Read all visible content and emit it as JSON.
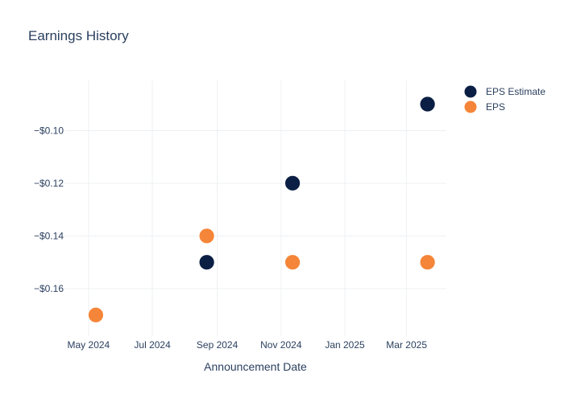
{
  "chart_data": {
    "type": "scatter",
    "title": "Earnings History",
    "xlabel": "Announcement Date",
    "ylabel": "",
    "x_ticks": [
      "May 2024",
      "Jul 2024",
      "Sep 2024",
      "Nov 2024",
      "Jan 2025",
      "Mar 2025"
    ],
    "y_ticks": [
      "−$0.10",
      "−$0.12",
      "−$0.14",
      "−$0.16"
    ],
    "y_tick_values": [
      -0.1,
      -0.12,
      -0.14,
      -0.16
    ],
    "xlim": [
      "2024-04-08",
      "2025-04-08"
    ],
    "ylim": [
      -0.178,
      -0.081
    ],
    "grid": true,
    "legend_position": "top-right",
    "series": [
      {
        "name": "EPS Estimate",
        "color": "#0b1f44",
        "points": [
          {
            "x": "2024-05-08",
            "y": -0.17
          },
          {
            "x": "2024-08-22",
            "y": -0.15
          },
          {
            "x": "2024-11-12",
            "y": -0.12
          },
          {
            "x": "2025-03-21",
            "y": -0.09
          }
        ]
      },
      {
        "name": "EPS",
        "color": "#f58538",
        "points": [
          {
            "x": "2024-05-08",
            "y": -0.17
          },
          {
            "x": "2024-08-22",
            "y": -0.14
          },
          {
            "x": "2024-11-12",
            "y": -0.15
          },
          {
            "x": "2025-03-21",
            "y": -0.15
          }
        ]
      }
    ]
  }
}
